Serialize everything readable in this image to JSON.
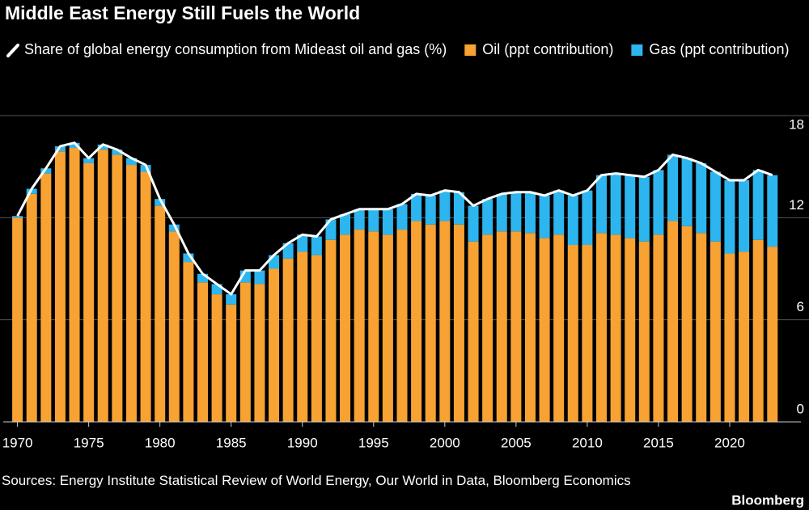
{
  "chart_data": {
    "type": "bar",
    "stacked": true,
    "title": "Middle East Energy Still Fuels the World",
    "source": "Sources: Energy Institute Statistical Review of World Energy, Our World in Data, Bloomberg Economics",
    "brand": "Bloomberg",
    "x": [
      1970,
      1971,
      1972,
      1973,
      1974,
      1975,
      1976,
      1977,
      1978,
      1979,
      1980,
      1981,
      1982,
      1983,
      1984,
      1985,
      1986,
      1987,
      1988,
      1989,
      1990,
      1991,
      1992,
      1993,
      1994,
      1995,
      1996,
      1997,
      1998,
      1999,
      2000,
      2001,
      2002,
      2003,
      2004,
      2005,
      2006,
      2007,
      2008,
      2009,
      2010,
      2011,
      2012,
      2013,
      2014,
      2015,
      2016,
      2017,
      2018,
      2019,
      2020,
      2021,
      2022,
      2023
    ],
    "xlim": [
      1969,
      2025
    ],
    "xticks": [
      1970,
      1975,
      1980,
      1985,
      1990,
      1995,
      2000,
      2005,
      2010,
      2015,
      2020
    ],
    "ylim": [
      0,
      18
    ],
    "yticks": [
      0,
      6,
      12,
      18
    ],
    "grid": true,
    "series": [
      {
        "name": "Share of global energy consumption from Mideast oil and gas (%)",
        "type": "line",
        "color": "#ffffff",
        "values": [
          12.1,
          13.7,
          14.9,
          16.2,
          16.4,
          15.5,
          16.3,
          16.0,
          15.5,
          15.1,
          13.1,
          11.6,
          9.9,
          8.7,
          8.1,
          7.5,
          8.9,
          8.9,
          9.8,
          10.5,
          11.0,
          10.9,
          11.9,
          12.2,
          12.5,
          12.5,
          12.5,
          12.8,
          13.4,
          13.3,
          13.6,
          13.5,
          12.7,
          13.1,
          13.4,
          13.5,
          13.5,
          13.3,
          13.6,
          13.3,
          13.6,
          14.5,
          14.6,
          14.5,
          14.4,
          14.8,
          15.7,
          15.5,
          15.2,
          14.7,
          14.2,
          14.2,
          14.8,
          14.5
        ]
      },
      {
        "name": "Oil (ppt contribution)",
        "type": "bar",
        "color": "#f7a232",
        "values": [
          12.0,
          13.4,
          14.6,
          15.9,
          16.1,
          15.2,
          16.0,
          15.7,
          15.1,
          14.7,
          12.7,
          11.2,
          9.4,
          8.2,
          7.5,
          6.9,
          8.2,
          8.1,
          9.0,
          9.6,
          10.0,
          9.8,
          10.7,
          11.0,
          11.3,
          11.2,
          11.0,
          11.3,
          11.8,
          11.6,
          11.8,
          11.6,
          10.6,
          11.0,
          11.2,
          11.2,
          11.1,
          10.8,
          11.0,
          10.4,
          10.4,
          11.1,
          11.0,
          10.8,
          10.6,
          11.0,
          11.8,
          11.5,
          11.1,
          10.6,
          9.9,
          10.0,
          10.7,
          10.3
        ]
      },
      {
        "name": "Gas (ppt contribution)",
        "type": "bar",
        "color": "#2db5ef",
        "values": [
          0.1,
          0.3,
          0.3,
          0.3,
          0.3,
          0.3,
          0.3,
          0.3,
          0.4,
          0.4,
          0.4,
          0.4,
          0.5,
          0.5,
          0.6,
          0.6,
          0.7,
          0.8,
          0.8,
          0.9,
          1.0,
          1.1,
          1.2,
          1.2,
          1.2,
          1.3,
          1.5,
          1.5,
          1.6,
          1.7,
          1.8,
          1.9,
          2.1,
          2.1,
          2.2,
          2.3,
          2.4,
          2.5,
          2.6,
          2.9,
          3.2,
          3.4,
          3.6,
          3.7,
          3.8,
          3.8,
          3.9,
          4.0,
          4.1,
          4.1,
          4.3,
          4.2,
          4.1,
          4.2
        ]
      }
    ]
  }
}
